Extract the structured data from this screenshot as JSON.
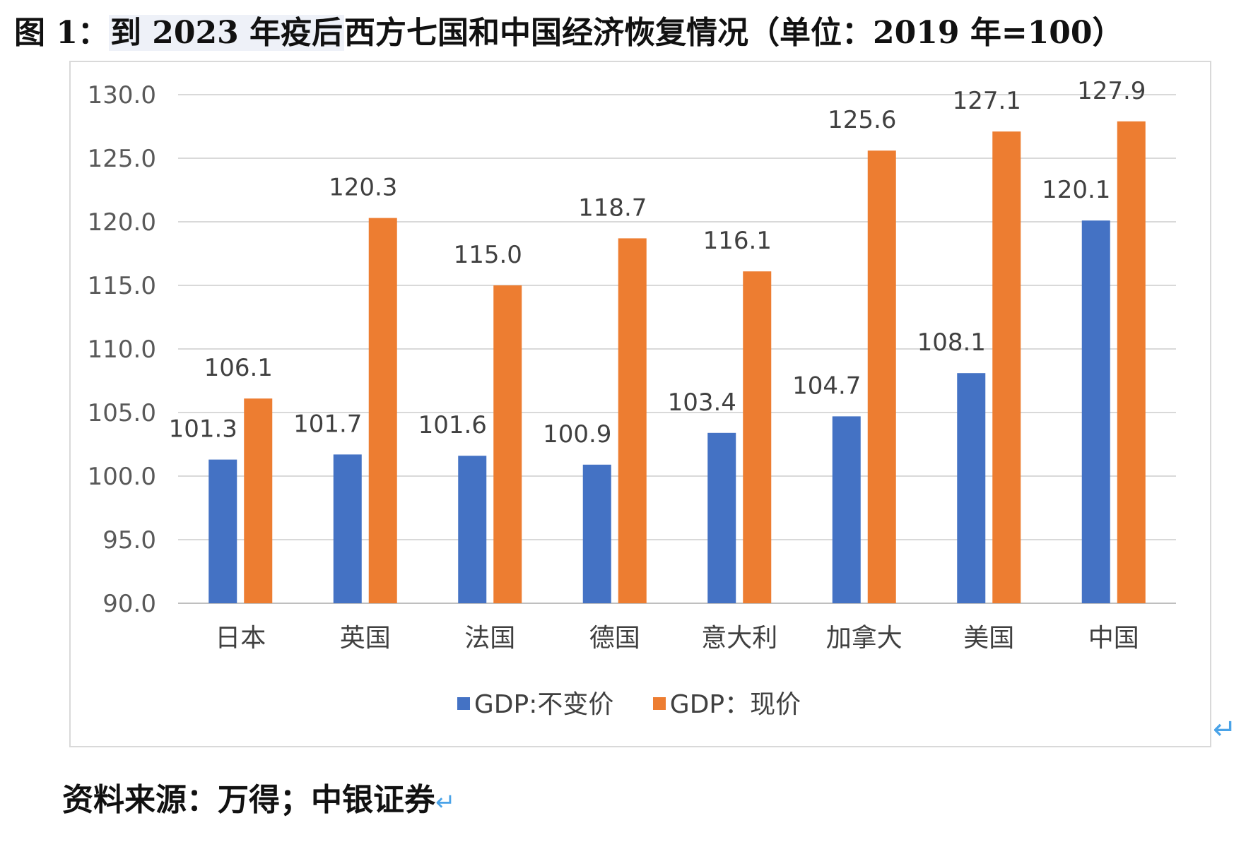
{
  "figure": {
    "title_prefix": "图 1：",
    "title_highlight": "到 2023 年疫后",
    "title_rest": "西方七国和中国经济恢复情况（单位：2019 年=100）",
    "source": "资料来源：万得；中银证券",
    "return_mark": "↵"
  },
  "chart_data": {
    "type": "bar",
    "title": "",
    "xlabel": "",
    "ylabel": "",
    "ylim": [
      90,
      130
    ],
    "ytick_step": 5,
    "ytick_labels": [
      "90.0",
      "95.0",
      "100.0",
      "105.0",
      "110.0",
      "115.0",
      "120.0",
      "125.0",
      "130.0"
    ],
    "grid": true,
    "legend_position": "bottom",
    "categories": [
      "日本",
      "英国",
      "法国",
      "德国",
      "意大利",
      "加拿大",
      "美国",
      "中国"
    ],
    "series": [
      {
        "name": "GDP:不变价",
        "color": "#4472c4",
        "values": [
          101.3,
          101.7,
          101.6,
          100.9,
          103.4,
          104.7,
          108.1,
          120.1
        ],
        "labels": [
          "101.3",
          "101.7",
          "101.6",
          "100.9",
          "103.4",
          "104.7",
          "108.1",
          "120.1"
        ]
      },
      {
        "name": "GDP：现价",
        "color": "#ed7d31",
        "values": [
          106.1,
          120.3,
          115.0,
          118.7,
          116.1,
          125.6,
          127.1,
          127.9
        ],
        "labels": [
          "106.1",
          "120.3",
          "115.0",
          "118.7",
          "116.1",
          "125.6",
          "127.1",
          "127.9"
        ]
      }
    ]
  }
}
